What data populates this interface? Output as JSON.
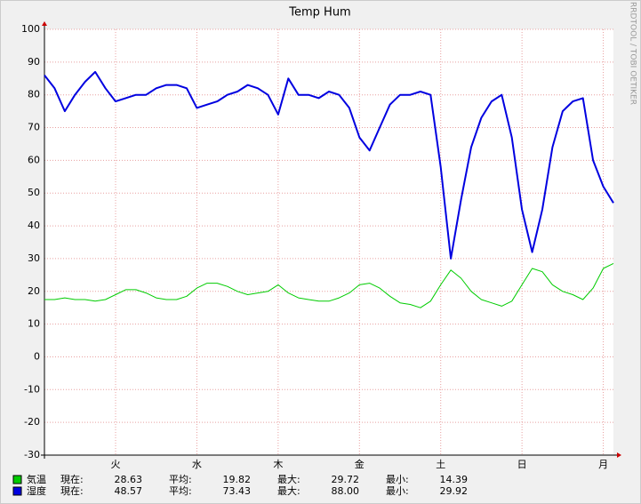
{
  "chart_data": {
    "type": "line",
    "title": "Temp Hum",
    "watermark": "RRDTOOL / TOBI OETIKER",
    "x": [
      0,
      0.125,
      0.25,
      0.375,
      0.5,
      0.625,
      0.75,
      0.875,
      1,
      1.125,
      1.25,
      1.375,
      1.5,
      1.625,
      1.75,
      1.875,
      2,
      2.125,
      2.25,
      2.375,
      2.5,
      2.625,
      2.75,
      2.875,
      3,
      3.125,
      3.25,
      3.375,
      3.5,
      3.625,
      3.75,
      3.875,
      4,
      4.125,
      4.25,
      4.375,
      4.5,
      4.625,
      4.75,
      4.875,
      5,
      5.125,
      5.25,
      5.375,
      5.5,
      5.625,
      5.75,
      5.875,
      6,
      6.125,
      6.25,
      6.375,
      6.5,
      6.625,
      6.75,
      6.875,
      7
    ],
    "xlim": [
      0,
      7
    ],
    "xticks": [
      {
        "value": 0.875,
        "label": "火"
      },
      {
        "value": 1.875,
        "label": "水"
      },
      {
        "value": 2.875,
        "label": "木"
      },
      {
        "value": 3.875,
        "label": "金"
      },
      {
        "value": 4.875,
        "label": "土"
      },
      {
        "value": 5.875,
        "label": "日"
      },
      {
        "value": 6.875,
        "label": "月"
      }
    ],
    "ylim": [
      -30,
      100
    ],
    "yticks": [
      -30,
      -20,
      -10,
      0,
      10,
      20,
      30,
      40,
      50,
      60,
      70,
      80,
      90,
      100
    ],
    "grid": true,
    "stat_labels": [
      "現在:",
      "平均:",
      "最大:",
      "最小:"
    ],
    "series": [
      {
        "name": "気温",
        "color": "#00cc00",
        "width": 1,
        "stats": [
          "28.63",
          "19.82",
          "29.72",
          "14.39"
        ],
        "values": [
          17.5,
          17.5,
          18,
          17.5,
          17.5,
          17,
          17.5,
          19,
          20.5,
          20.5,
          19.5,
          18,
          17.5,
          17.5,
          18.5,
          21,
          22.5,
          22.5,
          21.5,
          20,
          19,
          19.5,
          20,
          22,
          19.5,
          18,
          17.5,
          17,
          17,
          18,
          19.5,
          22,
          22.5,
          21,
          18.5,
          16.5,
          16,
          15,
          17,
          22,
          26.5,
          24,
          20,
          17.5,
          16.5,
          15.5,
          17,
          22,
          27,
          26,
          22,
          20,
          19,
          17.5,
          21,
          27,
          28.5
        ]
      },
      {
        "name": "湿度",
        "color": "#0000e0",
        "width": 2,
        "stats": [
          "48.57",
          "73.43",
          "88.00",
          "29.92"
        ],
        "values": [
          86,
          82,
          75,
          80,
          84,
          87,
          82,
          78,
          79,
          80,
          80,
          82,
          83,
          83,
          82,
          76,
          77,
          78,
          80,
          81,
          83,
          82,
          80,
          74,
          85,
          80,
          80,
          79,
          81,
          80,
          76,
          67,
          63,
          70,
          77,
          80,
          80,
          81,
          80,
          58,
          30,
          48,
          64,
          73,
          78,
          80,
          67,
          45,
          32,
          45,
          64,
          75,
          78,
          79,
          60,
          52,
          47
        ]
      }
    ]
  }
}
